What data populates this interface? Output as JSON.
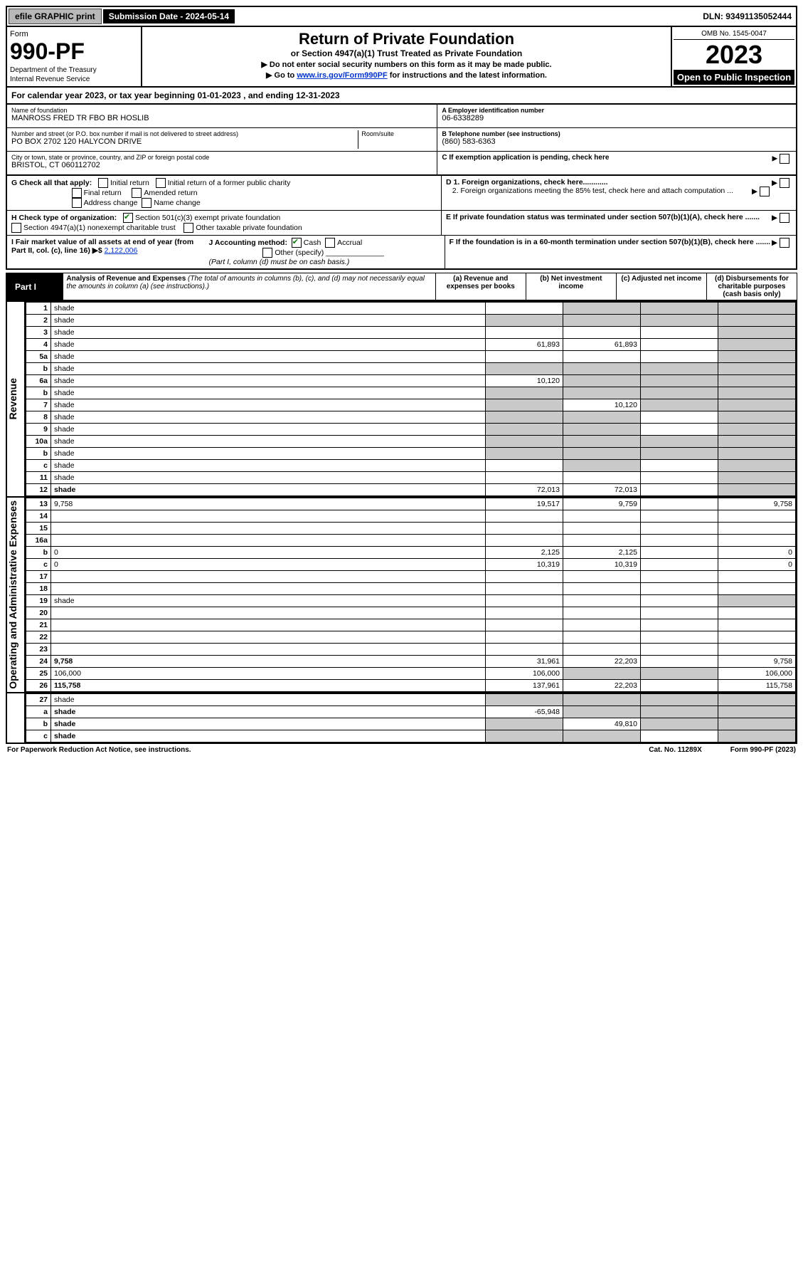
{
  "top": {
    "efile": "efile GRAPHIC print",
    "submission": "Submission Date - 2024-05-14",
    "dln": "DLN: 93491135052444"
  },
  "header": {
    "form_label": "Form",
    "form_no": "990-PF",
    "dept1": "Department of the Treasury",
    "dept2": "Internal Revenue Service",
    "title": "Return of Private Foundation",
    "subtitle": "or Section 4947(a)(1) Trust Treated as Private Foundation",
    "instr1": "▶ Do not enter social security numbers on this form as it may be made public.",
    "instr2_pre": "▶ Go to ",
    "instr2_link": "www.irs.gov/Form990PF",
    "instr2_post": " for instructions and the latest information.",
    "omb": "OMB No. 1545-0047",
    "year": "2023",
    "open": "Open to Public Inspection"
  },
  "cal": "For calendar year 2023, or tax year beginning 01-01-2023               , and ending 12-31-2023",
  "foundation": {
    "name_lbl": "Name of foundation",
    "name": "MANROSS FRED TR FBO BR HOSLIB",
    "addr_lbl": "Number and street (or P.O. box number if mail is not delivered to street address)",
    "addr": "PO BOX 2702 120 HALYCON DRIVE",
    "room_lbl": "Room/suite",
    "city_lbl": "City or town, state or province, country, and ZIP or foreign postal code",
    "city": "BRISTOL, CT  060112702",
    "ein_lbl": "A Employer identification number",
    "ein": "06-6338289",
    "phone_lbl": "B Telephone number (see instructions)",
    "phone": "(860) 583-6363",
    "c_lbl": "C If exemption application is pending, check here",
    "d1_lbl": "D 1. Foreign organizations, check here............",
    "d2_lbl": "2. Foreign organizations meeting the 85% test, check here and attach computation ...",
    "e_lbl": "E  If private foundation status was terminated under section 507(b)(1)(A), check here .......",
    "f_lbl": "F  If the foundation is in a 60-month termination under section 507(b)(1)(B), check here ......."
  },
  "g": {
    "label": "G Check all that apply:",
    "initial": "Initial return",
    "initial_former": "Initial return of a former public charity",
    "final": "Final return",
    "amended": "Amended return",
    "address": "Address change",
    "name_change": "Name change"
  },
  "h": {
    "label": "H Check type of organization:",
    "opt1": "Section 501(c)(3) exempt private foundation",
    "opt2": "Section 4947(a)(1) nonexempt charitable trust",
    "opt3": "Other taxable private foundation"
  },
  "i": {
    "label": "I Fair market value of all assets at end of year (from Part II, col. (c), line 16) ▶$",
    "value": "2,122,006"
  },
  "j": {
    "label": "J Accounting method:",
    "cash": "Cash",
    "accrual": "Accrual",
    "other": "Other (specify)",
    "note": "(Part I, column (d) must be on cash basis.)"
  },
  "part1": {
    "label": "Part I",
    "title": "Analysis of Revenue and Expenses",
    "title_note": "(The total of amounts in columns (b), (c), and (d) may not necessarily equal the amounts in column (a) (see instructions).)",
    "col_a": "(a)   Revenue and expenses per books",
    "col_b": "(b)   Net investment income",
    "col_c": "(c)   Adjusted net income",
    "col_d": "(d)   Disbursements for charitable purposes (cash basis only)"
  },
  "sections": {
    "revenue": "Revenue",
    "opex": "Operating and Administrative Expenses"
  },
  "rows": [
    {
      "n": "1",
      "d": "shade",
      "a": "",
      "b": "shade",
      "c": "shade"
    },
    {
      "n": "2",
      "d": "shade",
      "a": "shade",
      "b": "shade",
      "c": "shade"
    },
    {
      "n": "3",
      "d": "shade",
      "a": "",
      "b": "",
      "c": ""
    },
    {
      "n": "4",
      "d": "shade",
      "a": "61,893",
      "b": "61,893",
      "c": ""
    },
    {
      "n": "5a",
      "d": "shade",
      "a": "",
      "b": "",
      "c": ""
    },
    {
      "n": "b",
      "d": "shade",
      "a": "shade",
      "b": "shade",
      "c": "shade"
    },
    {
      "n": "6a",
      "d": "shade",
      "a": "10,120",
      "b": "shade",
      "c": "shade"
    },
    {
      "n": "b",
      "d": "shade",
      "a": "shade",
      "b": "shade",
      "c": "shade"
    },
    {
      "n": "7",
      "d": "shade",
      "a": "shade",
      "b": "10,120",
      "c": "shade"
    },
    {
      "n": "8",
      "d": "shade",
      "a": "shade",
      "b": "shade",
      "c": ""
    },
    {
      "n": "9",
      "d": "shade",
      "a": "shade",
      "b": "shade",
      "c": ""
    },
    {
      "n": "10a",
      "d": "shade",
      "a": "shade",
      "b": "shade",
      "c": "shade"
    },
    {
      "n": "b",
      "d": "shade",
      "a": "shade",
      "b": "shade",
      "c": "shade"
    },
    {
      "n": "c",
      "d": "shade",
      "a": "",
      "b": "shade",
      "c": ""
    },
    {
      "n": "11",
      "d": "shade",
      "a": "",
      "b": "",
      "c": ""
    },
    {
      "n": "12",
      "d": "shade",
      "a": "72,013",
      "b": "72,013",
      "c": "",
      "bold": true
    }
  ],
  "rows2": [
    {
      "n": "13",
      "d": "9,758",
      "a": "19,517",
      "b": "9,759",
      "c": ""
    },
    {
      "n": "14",
      "d": "",
      "a": "",
      "b": "",
      "c": ""
    },
    {
      "n": "15",
      "d": "",
      "a": "",
      "b": "",
      "c": ""
    },
    {
      "n": "16a",
      "d": "",
      "a": "",
      "b": "",
      "c": ""
    },
    {
      "n": "b",
      "d": "0",
      "a": "2,125",
      "b": "2,125",
      "c": ""
    },
    {
      "n": "c",
      "d": "0",
      "a": "10,319",
      "b": "10,319",
      "c": ""
    },
    {
      "n": "17",
      "d": "",
      "a": "",
      "b": "",
      "c": ""
    },
    {
      "n": "18",
      "d": "",
      "a": "",
      "b": "",
      "c": ""
    },
    {
      "n": "19",
      "d": "shade",
      "a": "",
      "b": "",
      "c": ""
    },
    {
      "n": "20",
      "d": "",
      "a": "",
      "b": "",
      "c": ""
    },
    {
      "n": "21",
      "d": "",
      "a": "",
      "b": "",
      "c": ""
    },
    {
      "n": "22",
      "d": "",
      "a": "",
      "b": "",
      "c": ""
    },
    {
      "n": "23",
      "d": "",
      "a": "",
      "b": "",
      "c": ""
    },
    {
      "n": "24",
      "d": "9,758",
      "a": "31,961",
      "b": "22,203",
      "c": "",
      "bold": true
    },
    {
      "n": "25",
      "d": "106,000",
      "a": "106,000",
      "b": "shade",
      "c": "shade"
    },
    {
      "n": "26",
      "d": "115,758",
      "a": "137,961",
      "b": "22,203",
      "c": "",
      "bold": true
    }
  ],
  "rows3": [
    {
      "n": "27",
      "d": "shade",
      "a": "shade",
      "b": "shade",
      "c": "shade"
    },
    {
      "n": "a",
      "d": "shade",
      "a": "-65,948",
      "b": "shade",
      "c": "shade",
      "bold": true
    },
    {
      "n": "b",
      "d": "shade",
      "a": "shade",
      "b": "49,810",
      "c": "shade",
      "bold": true
    },
    {
      "n": "c",
      "d": "shade",
      "a": "shade",
      "b": "shade",
      "c": "",
      "bold": true
    }
  ],
  "footer": {
    "left": "For Paperwork Reduction Act Notice, see instructions.",
    "mid": "Cat. No. 11289X",
    "right": "Form 990-PF (2023)"
  }
}
